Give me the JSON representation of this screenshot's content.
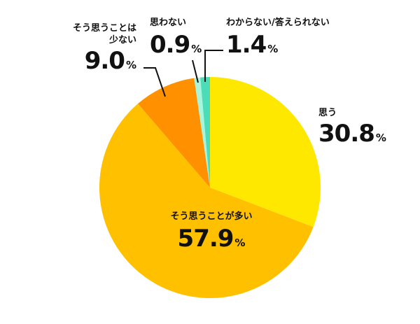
{
  "chart_data": {
    "type": "pie",
    "title": "",
    "center": [
      300,
      268
    ],
    "radius": 158,
    "start_angle_deg": 0,
    "direction": "clockwise",
    "slices": [
      {
        "label": "思う",
        "value": 30.8,
        "color": "#FFE800"
      },
      {
        "label": "そう思うことが多い",
        "value": 57.9,
        "color": "#FFC000"
      },
      {
        "label": "そう思うことは少ない",
        "value": 9.0,
        "color": "#FF9000"
      },
      {
        "label": "思わない",
        "value": 0.9,
        "color": "#A8F5DC"
      },
      {
        "label": "わからない/答えられない",
        "value": 1.4,
        "color": "#4CDDB8"
      }
    ],
    "unit": "%"
  },
  "labels": {
    "omou": {
      "cat": "思う",
      "val": "30.8",
      "pct": "%"
    },
    "ooi": {
      "cat": "そう思うことが多い",
      "val": "57.9",
      "pct": "%"
    },
    "sukunai": {
      "cat1": "そう思うことは",
      "cat2": "少ない",
      "val": "9.0",
      "pct": "%"
    },
    "omowanai": {
      "cat": "思わない",
      "val": "0.9",
      "pct": "%"
    },
    "wakaranai": {
      "cat": "わからない/答えられない",
      "val": "1.4",
      "pct": "%"
    }
  }
}
